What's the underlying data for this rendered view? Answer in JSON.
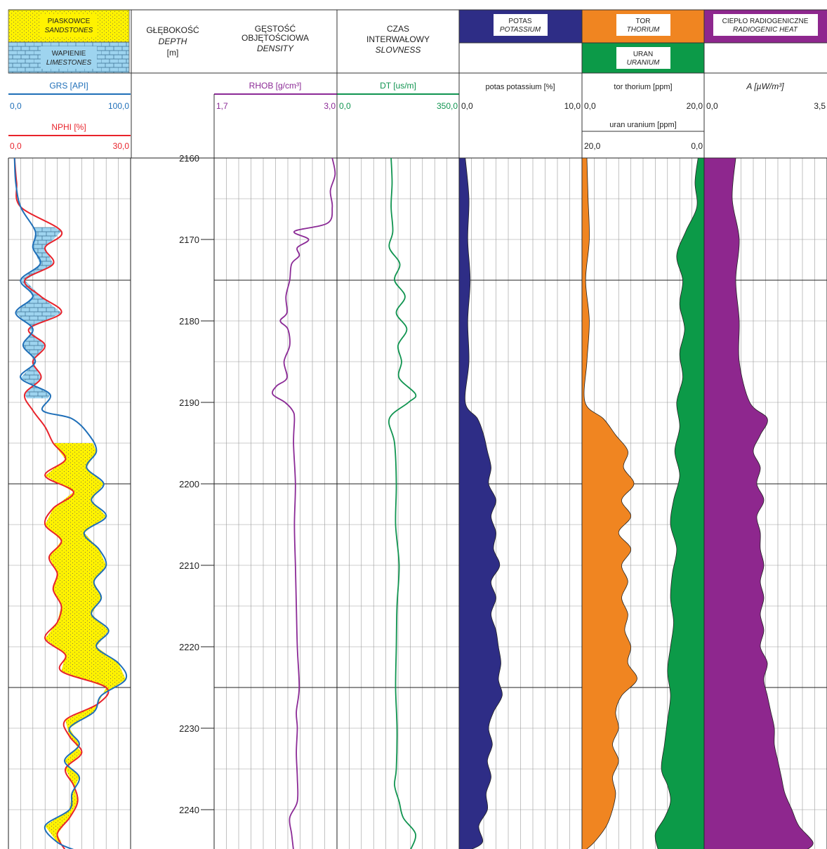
{
  "legend": {
    "sandstones_pl": "PIASKOWCE",
    "sandstones_en": "SANDSTONES",
    "limestones_pl": "WAPIENIE",
    "limestones_en": "LIMESTONES"
  },
  "headers": {
    "depth_pl": "GŁĘBOKOŚĆ",
    "depth_en": "DEPTH",
    "depth_unit": "[m]",
    "density_pl_1": "GĘSTOŚĆ",
    "density_pl_2": "OBJĘTOŚCIOWA",
    "density_en": "DENSITY",
    "slowness_pl_1": "CZAS",
    "slowness_pl_2": "INTERWAŁOWY",
    "slowness_en": "SLOVNESS",
    "potassium_pl": "POTAS",
    "potassium_en": "POTASSIUM",
    "thorium_pl": "TOR",
    "thorium_en": "THORIUM",
    "uranium_pl": "URAN",
    "uranium_en": "URANIUM",
    "heat_pl": "CIEPŁO RADIOGENICZNE",
    "heat_en": "RADIOGENIC HEAT"
  },
  "colors": {
    "grs": "#1f6fb8",
    "nphi": "#e8232b",
    "rhob": "#8b2a96",
    "dt": "#109450",
    "potassium": "#2e2d86",
    "thorium": "#f08521",
    "uranium": "#0c9a48",
    "heat": "#8e278e",
    "sandstone": "#fff200",
    "limestone": "#9ed4ef",
    "potassium_header": "#2e2d86",
    "thorium_header": "#f08521",
    "uranium_header": "#0c9a48",
    "heat_header": "#8e278e"
  },
  "chart_data": {
    "type": "line",
    "y_axis": {
      "label": "",
      "range": [
        2160,
        2245
      ],
      "ticks": [
        2160,
        2170,
        2180,
        2190,
        2200,
        2210,
        2220,
        2230,
        2240
      ],
      "reversed": true
    },
    "tracks": [
      {
        "name": "GRS",
        "curve_label": "GRS [API]",
        "range": [
          0,
          100
        ],
        "range_labels": [
          "0,0",
          "100,0"
        ],
        "depth": [
          2160,
          2163,
          2166,
          2169,
          2171,
          2173,
          2175,
          2177,
          2179,
          2181,
          2183,
          2185,
          2187,
          2189,
          2191,
          2192,
          2194,
          2196,
          2198,
          2200,
          2202,
          2204,
          2206,
          2208,
          2210,
          2212,
          2214,
          2216,
          2218,
          2220,
          2222,
          2224,
          2226,
          2228,
          2230,
          2232,
          2234,
          2236,
          2238,
          2240,
          2242,
          2244,
          2245
        ],
        "values": [
          5,
          6,
          10,
          22,
          20,
          26,
          10,
          20,
          6,
          20,
          12,
          22,
          10,
          34,
          28,
          52,
          66,
          72,
          64,
          78,
          68,
          80,
          62,
          74,
          80,
          70,
          76,
          68,
          82,
          72,
          90,
          96,
          76,
          70,
          50,
          58,
          46,
          58,
          52,
          50,
          30,
          40,
          55
        ]
      },
      {
        "name": "NPHI",
        "curve_label": "NPHI [%]",
        "range": [
          0,
          30
        ],
        "range_labels": [
          "0,0",
          "30,0"
        ],
        "depth": [
          2160,
          2163,
          2166,
          2169,
          2171,
          2173,
          2175,
          2177,
          2179,
          2181,
          2183,
          2185,
          2187,
          2189,
          2191,
          2193,
          2195,
          2197,
          2199,
          2201,
          2203,
          2205,
          2207,
          2209,
          2211,
          2213,
          2215,
          2217,
          2219,
          2221,
          2223,
          2225,
          2227,
          2229,
          2231,
          2233,
          2235,
          2237,
          2239,
          2241,
          2243,
          2245
        ],
        "values": [
          1.5,
          2,
          3,
          13,
          9,
          11,
          4,
          8,
          13,
          5,
          9,
          6,
          8,
          4,
          6,
          9,
          11,
          14,
          9,
          16,
          11,
          9,
          13,
          10,
          12,
          11,
          13,
          12,
          9,
          14,
          13,
          24,
          22,
          14,
          15,
          18,
          14,
          16,
          17,
          15,
          12,
          14
        ]
      },
      {
        "name": "RHOB",
        "curve_label": "RHOB [g/cm³]",
        "range": [
          1.7,
          3.0
        ],
        "range_labels": [
          "1,7",
          "3,0"
        ],
        "depth": [
          2160,
          2162,
          2164,
          2166,
          2168,
          2169,
          2170,
          2171,
          2172,
          2173,
          2175,
          2177,
          2179,
          2180,
          2181,
          2183,
          2185,
          2187,
          2188,
          2189,
          2190,
          2191,
          2192,
          2195,
          2200,
          2205,
          2210,
          2215,
          2220,
          2225,
          2228,
          2230,
          2233,
          2236,
          2239,
          2241,
          2243,
          2245
        ],
        "values": [
          2.95,
          2.98,
          2.93,
          2.95,
          2.9,
          2.55,
          2.7,
          2.58,
          2.6,
          2.52,
          2.5,
          2.46,
          2.47,
          2.4,
          2.48,
          2.5,
          2.44,
          2.47,
          2.36,
          2.32,
          2.45,
          2.53,
          2.55,
          2.54,
          2.56,
          2.55,
          2.56,
          2.57,
          2.58,
          2.6,
          2.57,
          2.58,
          2.57,
          2.58,
          2.58,
          2.5,
          2.52,
          2.54
        ]
      },
      {
        "name": "DT",
        "curve_label": "DT [us/m]",
        "range": [
          0,
          350
        ],
        "range_labels": [
          "0,0",
          "350,0"
        ],
        "depth": [
          2160,
          2163,
          2166,
          2169,
          2171,
          2173,
          2175,
          2177,
          2179,
          2181,
          2183,
          2185,
          2187,
          2189,
          2190,
          2192,
          2195,
          2200,
          2205,
          2210,
          2215,
          2220,
          2225,
          2230,
          2235,
          2237,
          2239,
          2241,
          2243,
          2245
        ],
        "values": [
          155,
          158,
          155,
          160,
          150,
          180,
          165,
          195,
          170,
          200,
          175,
          185,
          178,
          225,
          205,
          150,
          165,
          170,
          168,
          178,
          172,
          170,
          168,
          172,
          170,
          165,
          178,
          190,
          225,
          210
        ]
      },
      {
        "name": "POTASSIUM",
        "curve_label": "potas potassium [%]",
        "range": [
          0,
          10
        ],
        "range_labels": [
          "0,0",
          "10,0"
        ],
        "depth": [
          2160,
          2165,
          2170,
          2175,
          2180,
          2185,
          2190,
          2192,
          2194,
          2196,
          2198,
          2200,
          2202,
          2204,
          2206,
          2208,
          2210,
          2212,
          2214,
          2216,
          2218,
          2220,
          2222,
          2224,
          2226,
          2228,
          2230,
          2232,
          2234,
          2236,
          2238,
          2240,
          2242,
          2244,
          2245
        ],
        "values": [
          0.5,
          0.8,
          0.7,
          0.9,
          0.7,
          0.8,
          0.5,
          1.5,
          2.0,
          2.3,
          2.6,
          2.4,
          3.0,
          2.6,
          3.0,
          2.8,
          3.3,
          2.6,
          3.0,
          2.6,
          3.0,
          3.2,
          3.4,
          3.2,
          3.5,
          2.8,
          2.4,
          2.7,
          2.3,
          2.6,
          2.2,
          2.3,
          1.6,
          1.9,
          0.8
        ]
      },
      {
        "name": "THORIUM",
        "curve_label": "tor thorium [ppm]",
        "range": [
          0,
          20
        ],
        "range_labels": [
          "0,0",
          "20,0"
        ],
        "depth": [
          2160,
          2165,
          2170,
          2175,
          2180,
          2185,
          2190,
          2192,
          2194,
          2196,
          2198,
          2200,
          2202,
          2204,
          2206,
          2208,
          2210,
          2212,
          2214,
          2216,
          2218,
          2220,
          2222,
          2224,
          2226,
          2228,
          2230,
          2232,
          2234,
          2236,
          2238,
          2240,
          2242,
          2244,
          2245
        ],
        "values": [
          0.8,
          1.0,
          1.2,
          0.6,
          1.2,
          0.8,
          0.5,
          3.5,
          5.5,
          7.5,
          6.8,
          8.5,
          6.5,
          8.0,
          6.0,
          8.0,
          6.5,
          7.5,
          6.5,
          7.5,
          7.0,
          8.0,
          7.5,
          9.0,
          6.5,
          5.5,
          6.0,
          5.0,
          6.0,
          5.0,
          5.5,
          5.0,
          4.0,
          2.0,
          0.5
        ]
      },
      {
        "name": "URANIUM",
        "curve_label": "uran uranium [ppm]",
        "range": [
          20,
          0
        ],
        "range_labels": [
          "20,0",
          "0,0"
        ],
        "depth": [
          2160,
          2163,
          2166,
          2169,
          2172,
          2175,
          2178,
          2181,
          2184,
          2187,
          2190,
          2193,
          2196,
          2199,
          2202,
          2205,
          2208,
          2211,
          2214,
          2217,
          2220,
          2223,
          2226,
          2229,
          2232,
          2235,
          2237,
          2239,
          2241,
          2243,
          2245
        ],
        "values": [
          1.0,
          1.5,
          1.2,
          3.0,
          4.5,
          3.5,
          4.0,
          3.2,
          4.0,
          3.5,
          4.5,
          4.0,
          4.8,
          4.0,
          5.0,
          5.5,
          4.5,
          5.2,
          5.5,
          5.0,
          5.5,
          6.0,
          5.5,
          6.0,
          6.5,
          7.0,
          6.0,
          5.5,
          6.5,
          8.0,
          7.5
        ]
      },
      {
        "name": "RADIOGENIC HEAT",
        "curve_label": "A [µW/m³]",
        "range": [
          0,
          3.5
        ],
        "range_labels": [
          "0,0",
          "3,5"
        ],
        "depth": [
          2160,
          2165,
          2170,
          2175,
          2180,
          2185,
          2190,
          2192,
          2194,
          2196,
          2198,
          2200,
          2202,
          2204,
          2206,
          2208,
          2210,
          2212,
          2214,
          2216,
          2218,
          2220,
          2222,
          2224,
          2226,
          2228,
          2230,
          2232,
          2234,
          2236,
          2238,
          2240,
          2242,
          2244,
          2245
        ],
        "values": [
          0.9,
          0.8,
          1.0,
          0.9,
          1.0,
          1.0,
          1.3,
          1.8,
          1.6,
          1.4,
          1.6,
          1.5,
          1.7,
          1.5,
          1.6,
          1.6,
          1.7,
          1.6,
          1.7,
          1.6,
          1.7,
          1.6,
          1.8,
          1.7,
          1.8,
          1.9,
          2.0,
          2.0,
          2.1,
          2.2,
          2.3,
          2.5,
          2.7,
          3.1,
          2.9
        ]
      }
    ]
  }
}
